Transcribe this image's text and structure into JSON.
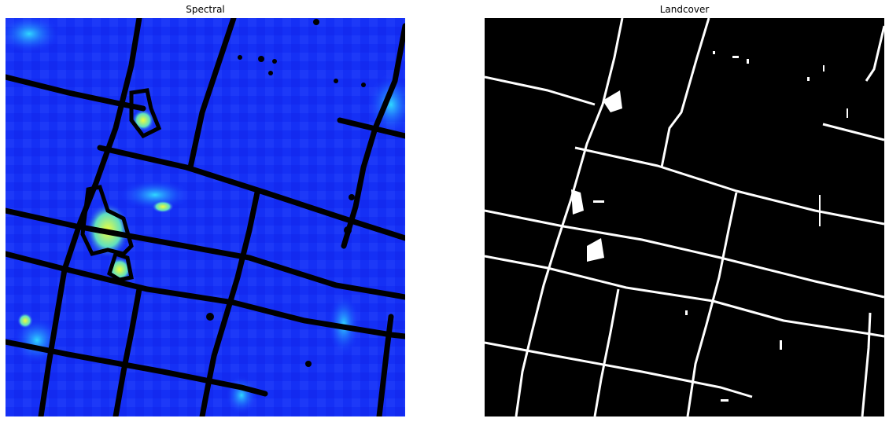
{
  "panels": {
    "spectral": {
      "title": "Spectral"
    },
    "landcover": {
      "title": "Landcover"
    }
  },
  "colors": {
    "spectral_base": "#1a33ff",
    "spectral_dark": "#0a10e0",
    "spectral_cyan": "#1fd0ff",
    "spectral_yellow": "#e6ff3a",
    "contour": "#000000",
    "landcover_bg": "#000000",
    "landcover_line": "#ffffff"
  }
}
